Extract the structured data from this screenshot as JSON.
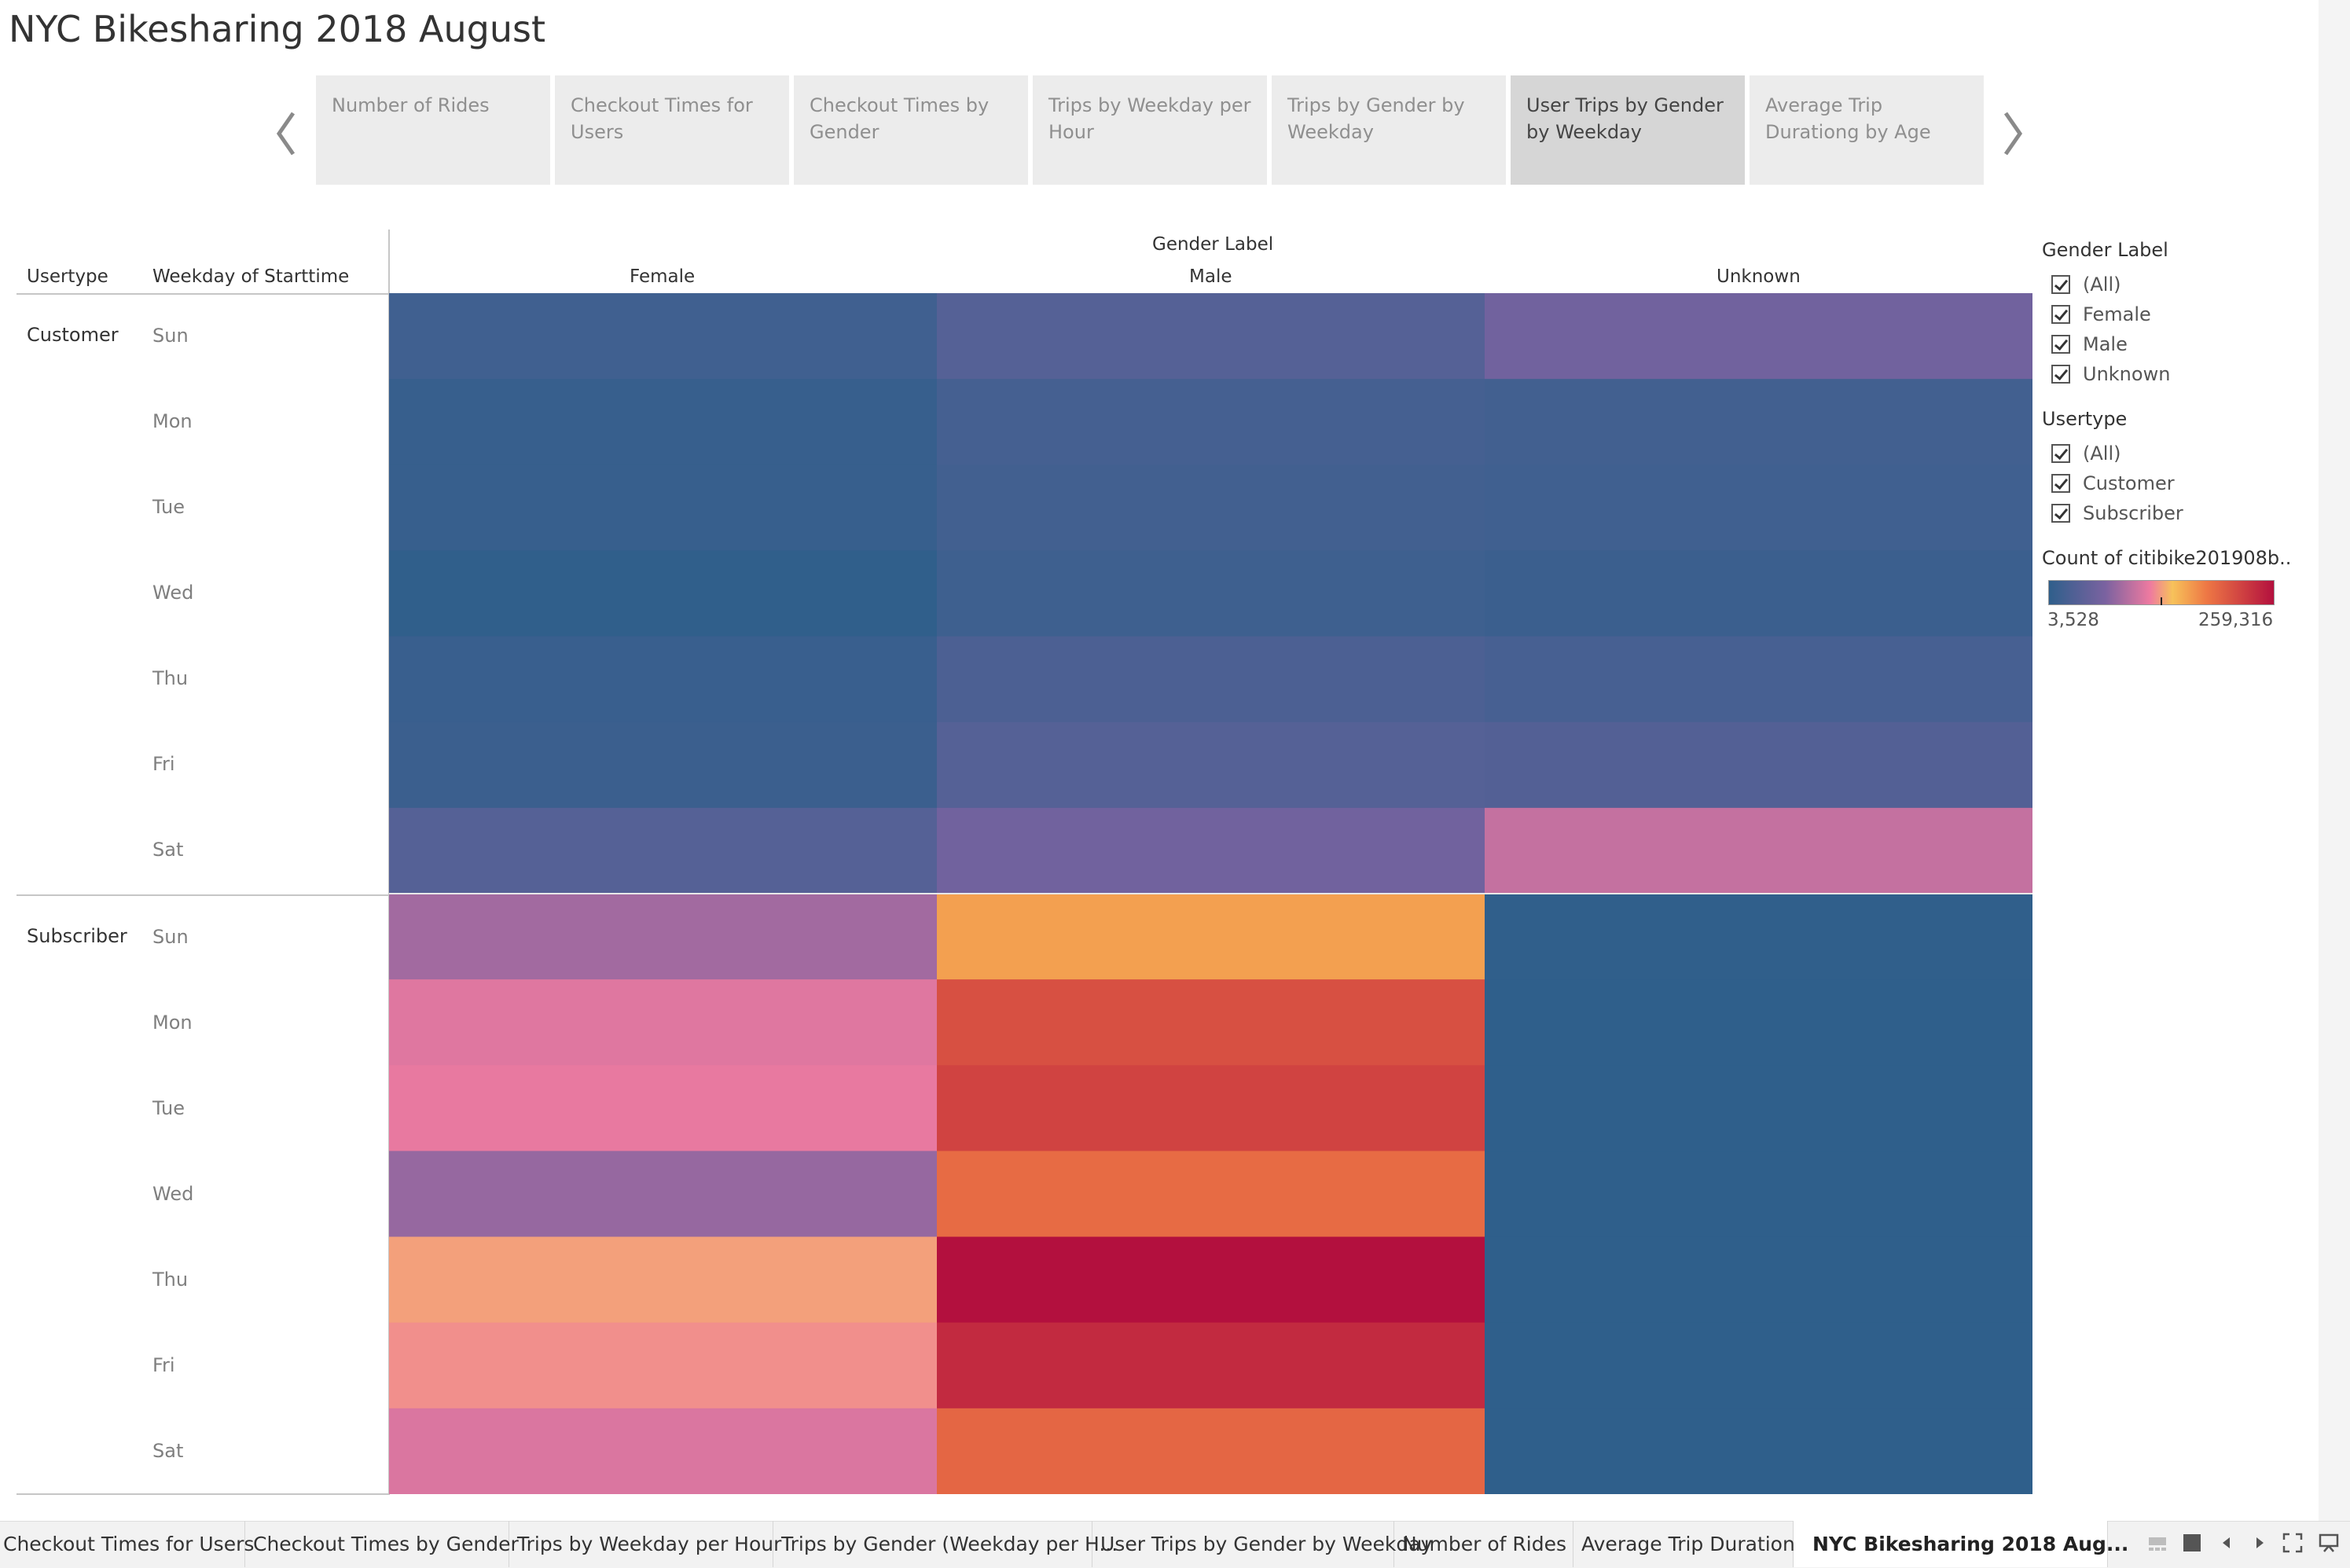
{
  "title": "NYC Bikesharing 2018 August",
  "story_points": [
    {
      "label_1": "Number of Rides",
      "label_2": ""
    },
    {
      "label_1": "Checkout Times for",
      "label_2": "Users"
    },
    {
      "label_1": "Checkout Times by",
      "label_2": "Gender"
    },
    {
      "label_1": "Trips by Weekday per",
      "label_2": "Hour"
    },
    {
      "label_1": "Trips by Gender by",
      "label_2": "Weekday"
    },
    {
      "label_1": "User Trips by Gender",
      "label_2": "by Weekday"
    },
    {
      "label_1": "Average Trip",
      "label_2": "Durationg by Age"
    }
  ],
  "active_story_point": 5,
  "headers": {
    "usertype": "Usertype",
    "weekday": "Weekday of Starttime",
    "gender_label": "Gender Label"
  },
  "chart_data": {
    "type": "heatmap",
    "columns": [
      "Female",
      "Male",
      "Unknown"
    ],
    "row_groups": [
      {
        "usertype": "Customer",
        "days": [
          "Sun",
          "Mon",
          "Tue",
          "Wed",
          "Thu",
          "Fri",
          "Sat"
        ]
      },
      {
        "usertype": "Subscriber",
        "days": [
          "Sun",
          "Mon",
          "Tue",
          "Wed",
          "Thu",
          "Fri",
          "Sat"
        ]
      }
    ],
    "values": [
      [
        18000,
        36000,
        60000
      ],
      [
        10000,
        22000,
        20000
      ],
      [
        10000,
        20000,
        18000
      ],
      [
        4000,
        16000,
        14000
      ],
      [
        12000,
        28000,
        24000
      ],
      [
        14000,
        36000,
        34000
      ],
      [
        36000,
        60000,
        100000
      ],
      [
        85000,
        162000,
        4000
      ],
      [
        112000,
        212000,
        3600
      ],
      [
        116000,
        222000,
        3600
      ],
      [
        80000,
        192000,
        3600
      ],
      [
        132000,
        259316,
        3600
      ],
      [
        126000,
        240000,
        3600
      ],
      [
        110000,
        196000,
        3528
      ]
    ],
    "color_min": 3528,
    "color_max": 259316,
    "colors": [
      "#2f5f8b",
      "#7a62a0",
      "#ee7aa0",
      "#f7c25a",
      "#ee7845",
      "#b3103e"
    ]
  },
  "legend": {
    "gender_title": "Gender Label",
    "gender_items": [
      "(All)",
      "Female",
      "Male",
      "Unknown"
    ],
    "usertype_title": "Usertype",
    "usertype_items": [
      "(All)",
      "Customer",
      "Subscriber"
    ],
    "color_title": "Count of citibike201908b..",
    "color_min_label": "3,528",
    "color_max_label": "259,316"
  },
  "tabs": [
    "Checkout Times for Users",
    "Checkout Times by Gender",
    "Trips by Weekday per Hour",
    "Trips by Gender (Weekday per H...",
    "User Trips by Gender by Weekday",
    "Number of Rides",
    "Average Trip Duration",
    "NYC Bikesharing 2018 Aug..."
  ]
}
